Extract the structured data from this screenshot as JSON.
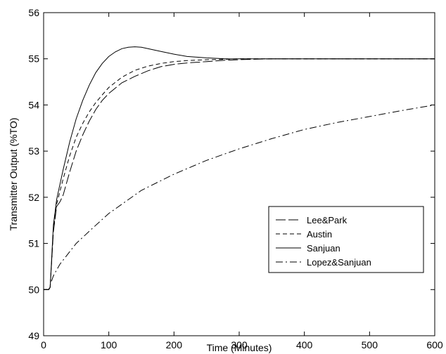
{
  "chart_data": {
    "type": "line",
    "title": "",
    "xlabel": "Time (Minutes)",
    "ylabel": "Transmitter Output (%TO)",
    "xlim": [
      0,
      600
    ],
    "ylim": [
      49,
      56
    ],
    "x_ticks": [
      "0",
      "100",
      "200",
      "300",
      "400",
      "500",
      "600"
    ],
    "y_ticks": [
      "49",
      "50",
      "51",
      "52",
      "53",
      "54",
      "55",
      "56"
    ],
    "grid": false,
    "legend_position": "lower-right",
    "series": [
      {
        "name": "Lee&Park",
        "dash": "longdash",
        "x": [
          0,
          8,
          10,
          15,
          20,
          25,
          30,
          40,
          50,
          60,
          70,
          80,
          90,
          100,
          120,
          140,
          160,
          180,
          200,
          220,
          250,
          280,
          300,
          350,
          400,
          600
        ],
        "y": [
          50,
          50,
          50.05,
          51.25,
          51.8,
          51.9,
          52.05,
          52.55,
          53.0,
          53.35,
          53.65,
          53.9,
          54.1,
          54.25,
          54.48,
          54.62,
          54.74,
          54.83,
          54.88,
          54.91,
          54.94,
          54.97,
          54.98,
          55.0,
          55.0,
          55.0
        ]
      },
      {
        "name": "Austin",
        "dash": "dash",
        "x": [
          0,
          8,
          10,
          15,
          20,
          30,
          40,
          50,
          60,
          70,
          80,
          90,
          100,
          120,
          140,
          160,
          180,
          200,
          220,
          250,
          280,
          300,
          350,
          400,
          600
        ],
        "y": [
          50,
          50,
          50.05,
          51.3,
          51.85,
          52.4,
          52.9,
          53.3,
          53.6,
          53.85,
          54.05,
          54.22,
          54.38,
          54.6,
          54.75,
          54.84,
          54.9,
          54.94,
          54.96,
          54.98,
          54.99,
          55.0,
          55.0,
          55.0,
          55.0
        ]
      },
      {
        "name": "Sanjuan",
        "dash": "solid",
        "x": [
          0,
          8,
          10,
          15,
          20,
          30,
          40,
          50,
          60,
          70,
          80,
          90,
          100,
          110,
          120,
          130,
          140,
          150,
          160,
          170,
          180,
          200,
          220,
          250,
          280,
          300,
          350,
          400,
          600
        ],
        "y": [
          50,
          50,
          50.05,
          51.4,
          51.95,
          52.6,
          53.2,
          53.7,
          54.1,
          54.43,
          54.7,
          54.9,
          55.05,
          55.15,
          55.22,
          55.25,
          55.26,
          55.25,
          55.22,
          55.19,
          55.16,
          55.1,
          55.05,
          55.02,
          55.0,
          55.0,
          55.0,
          55.0,
          55.0
        ]
      },
      {
        "name": "Lopez&Sanjuan",
        "dash": "dashdot",
        "x": [
          0,
          8,
          10,
          15,
          25,
          50,
          75,
          100,
          150,
          200,
          250,
          300,
          350,
          400,
          450,
          500,
          550,
          600
        ],
        "y": [
          50,
          50,
          50.1,
          50.3,
          50.55,
          51.0,
          51.33,
          51.65,
          52.15,
          52.5,
          52.8,
          53.05,
          53.27,
          53.47,
          53.62,
          53.75,
          53.88,
          54.0
        ]
      }
    ]
  }
}
